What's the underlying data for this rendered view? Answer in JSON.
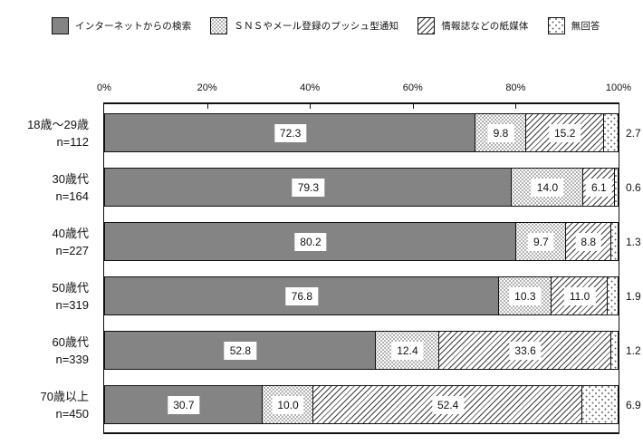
{
  "colors": {
    "bar_fill_gray": "#848484",
    "border": "#111111",
    "background": "#ffffff"
  },
  "chart_data": {
    "type": "bar",
    "stacked": true,
    "orientation": "horizontal",
    "title": "",
    "legend_position": "top",
    "x_axis": {
      "ticks": [
        "0%",
        "20%",
        "40%",
        "60%",
        "80%",
        "100%"
      ],
      "range": [
        0,
        100
      ]
    },
    "series": [
      {
        "name": "インターネットからの検索",
        "pattern": "solid-gray",
        "values": [
          72.3,
          79.3,
          80.2,
          76.8,
          52.8,
          30.7
        ]
      },
      {
        "name": "ＳＮＳやメール登録のプッシュ型通知",
        "pattern": "fine-dots",
        "values": [
          9.8,
          14.0,
          9.7,
          10.3,
          12.4,
          10.0
        ]
      },
      {
        "name": "情報誌などの紙媒体",
        "pattern": "diagonal-hatch",
        "values": [
          15.2,
          6.1,
          8.8,
          11.0,
          33.6,
          52.4
        ]
      },
      {
        "name": "無回答",
        "pattern": "sparse-dots",
        "values": [
          2.7,
          0.6,
          1.3,
          1.9,
          1.2,
          6.9
        ]
      }
    ],
    "rows": [
      {
        "label": "18歳〜29歳",
        "n": "n=112",
        "values": [
          72.3,
          9.8,
          15.2,
          2.7
        ],
        "labels": [
          "72.3",
          "9.8",
          "15.2",
          "2.7"
        ]
      },
      {
        "label": "30歳代",
        "n": "n=164",
        "values": [
          79.3,
          14.0,
          6.1,
          0.6
        ],
        "labels": [
          "79.3",
          "14.0",
          "6.1",
          "0.6"
        ]
      },
      {
        "label": "40歳代",
        "n": "n=227",
        "values": [
          80.2,
          9.7,
          8.8,
          1.3
        ],
        "labels": [
          "80.2",
          "9.7",
          "8.8",
          "1.3"
        ]
      },
      {
        "label": "50歳代",
        "n": "n=319",
        "values": [
          76.8,
          10.3,
          11.0,
          1.9
        ],
        "labels": [
          "76.8",
          "10.3",
          "11.0",
          "1.9"
        ]
      },
      {
        "label": "60歳代",
        "n": "n=339",
        "values": [
          52.8,
          12.4,
          33.6,
          1.2
        ],
        "labels": [
          "52.8",
          "12.4",
          "33.6",
          "1.2"
        ]
      },
      {
        "label": "70歳以上",
        "n": "n=450",
        "values": [
          30.7,
          10.0,
          52.4,
          6.9
        ],
        "labels": [
          "30.7",
          "10.0",
          "52.4",
          "6.9"
        ]
      }
    ]
  }
}
